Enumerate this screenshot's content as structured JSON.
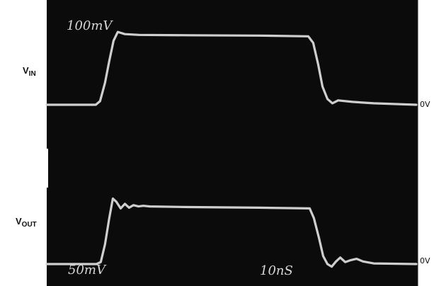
{
  "labels": {
    "vin_main": "V",
    "vin_sub": "IN",
    "vout_main": "V",
    "vout_sub": "OUT",
    "zero_top": "0V",
    "zero_bottom": "0V",
    "scale_top": "100mV",
    "scale_bottom": "50mV",
    "timebase": "10nS"
  },
  "colors": {
    "screen": "#0b0b0b",
    "trace": "#cfcfcf"
  },
  "chart_data": {
    "type": "line",
    "title": "",
    "xlabel": "",
    "ylabel": "",
    "grid": false,
    "legend": "none",
    "x_units": "ns",
    "time_per_division": "10nS",
    "xlim": [
      0,
      52
    ],
    "series": [
      {
        "name": "VIN",
        "volts_per_division": "100mV",
        "ylim": [
          0,
          105
        ],
        "x": [
          0,
          6.9,
          7.5,
          8.2,
          8.8,
          9.4,
          10.0,
          11.0,
          13.0,
          20,
          30,
          36.8,
          37.5,
          38.2,
          38.8,
          39.5,
          40.2,
          41.0,
          43,
          46,
          52
        ],
        "y": [
          0,
          0,
          5,
          30,
          60,
          88,
          100,
          97,
          96,
          95.5,
          95,
          94,
          85,
          55,
          25,
          8,
          2,
          6,
          4,
          2,
          0
        ]
      },
      {
        "name": "VOUT",
        "volts_per_division": "50mV",
        "ylim": [
          0,
          120
        ],
        "x": [
          0,
          7.0,
          7.6,
          8.2,
          8.8,
          9.3,
          9.8,
          10.4,
          11.0,
          11.6,
          12.2,
          12.9,
          13.6,
          14.5,
          20,
          30,
          37.0,
          37.6,
          38.3,
          38.9,
          39.5,
          40.1,
          40.7,
          41.3,
          42.0,
          42.8,
          43.6,
          44.5,
          46,
          52
        ],
        "y": [
          0,
          0,
          3,
          30,
          70,
          100,
          95,
          85,
          92,
          86,
          90,
          88,
          89,
          88,
          87,
          86,
          85,
          70,
          40,
          12,
          0,
          -4,
          4,
          10,
          3,
          6,
          8,
          4,
          1,
          0
        ]
      }
    ]
  }
}
